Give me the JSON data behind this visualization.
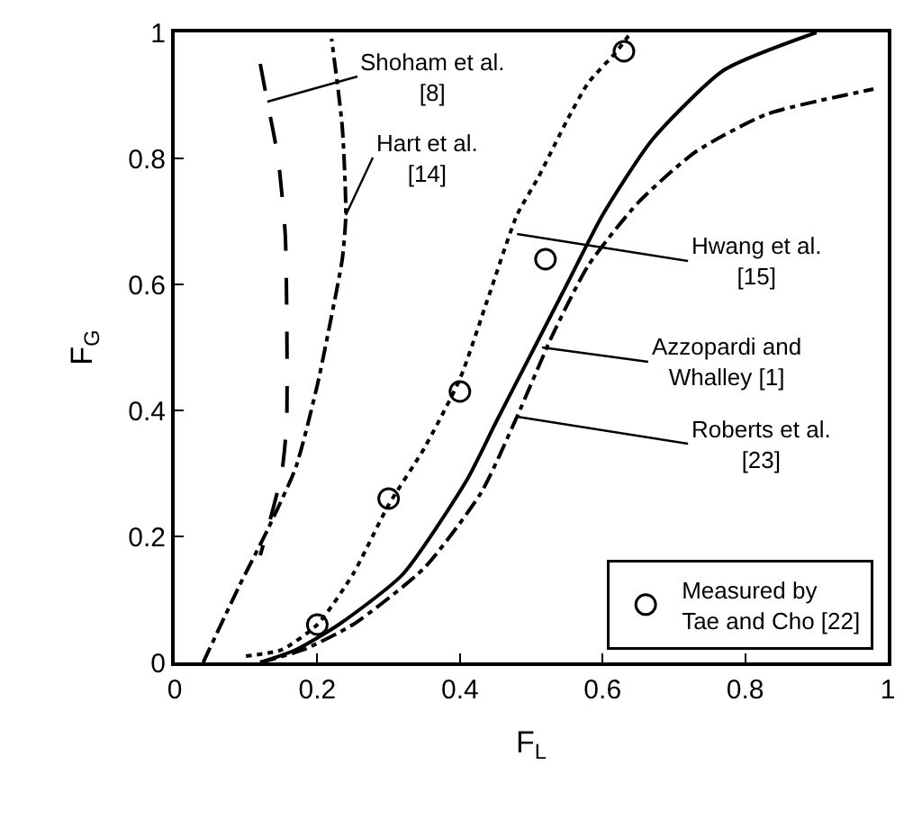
{
  "chart_data": {
    "type": "line",
    "xlabel": "F$_{L}$",
    "ylabel": "F$_{G}$",
    "xlim": [
      0,
      1
    ],
    "ylim": [
      0,
      1
    ],
    "xticks": [
      0,
      0.2,
      0.4,
      0.6,
      0.8,
      1
    ],
    "yticks": [
      0,
      0.2,
      0.4,
      0.6,
      0.8,
      1
    ],
    "legend": "bottom right",
    "series": [
      {
        "color": "#000000",
        "line_style": "dashed",
        "marker": "none",
        "x": [
          0.12,
          0.13,
          0.145,
          0.155,
          0.157,
          0.157,
          0.15,
          0.13,
          0.12
        ],
        "values": [
          0.95,
          0.89,
          0.8,
          0.68,
          0.57,
          0.38,
          0.3,
          0.21,
          0.17
        ]
      },
      {
        "color": "#000000",
        "line_style": "dashdot",
        "marker": "none",
        "x": [
          0.04,
          0.09,
          0.13,
          0.17,
          0.2,
          0.22,
          0.235,
          0.24,
          0.235,
          0.22
        ],
        "values": [
          0,
          0.12,
          0.21,
          0.31,
          0.44,
          0.55,
          0.64,
          0.71,
          0.85,
          0.99
        ]
      },
      {
        "color": "#000000",
        "line_style": "dotted",
        "marker": "none",
        "x": [
          0.1,
          0.15,
          0.2,
          0.25,
          0.3,
          0.35,
          0.4,
          0.44,
          0.48,
          0.51,
          0.55,
          0.58,
          0.62,
          0.64
        ],
        "values": [
          0.01,
          0.02,
          0.06,
          0.14,
          0.25,
          0.34,
          0.45,
          0.58,
          0.71,
          0.77,
          0.86,
          0.92,
          0.97,
          1
        ]
      },
      {
        "color": "#000000",
        "line_style": "solid",
        "marker": "none",
        "x": [
          0.12,
          0.17,
          0.23,
          0.32,
          0.41,
          0.45,
          0.5,
          0.55,
          0.6,
          0.67,
          0.77,
          0.9
        ],
        "values": [
          0,
          0.02,
          0.06,
          0.14,
          0.29,
          0.38,
          0.49,
          0.6,
          0.71,
          0.83,
          0.94,
          1
        ]
      },
      {
        "color": "#000000",
        "line_style": "dashdot",
        "marker": "none",
        "x": [
          0.12,
          0.18,
          0.25,
          0.35,
          0.43,
          0.48,
          0.53,
          0.58,
          0.65,
          0.73,
          0.83,
          0.98
        ],
        "values": [
          0,
          0.02,
          0.06,
          0.15,
          0.27,
          0.39,
          0.52,
          0.63,
          0.73,
          0.81,
          0.87,
          0.91
        ]
      },
      {
        "type": "scatter",
        "name": "Measured by\nTae and Cho [22]",
        "color": "#000000",
        "marker": "circle",
        "x": [
          0.2,
          0.3,
          0.4,
          0.52,
          0.63
        ],
        "values": [
          0.06,
          0.26,
          0.43,
          0.64,
          0.97
        ]
      }
    ],
    "annotations": [
      {
        "text": "Shoham et al.\n[8]",
        "x": 0.13,
        "y": 0.89
      },
      {
        "text": "Hart et al.\n[14]",
        "x": 0.24,
        "y": 0.71
      },
      {
        "text": "Hwang et al.\n[15]",
        "x": 0.48,
        "y": 0.68
      },
      {
        "text": "Azzopardi and\nWhalley [1]",
        "x": 0.515,
        "y": 0.5
      },
      {
        "text": "Roberts et al.\n[23]",
        "x": 0.48,
        "y": 0.39
      }
    ]
  }
}
